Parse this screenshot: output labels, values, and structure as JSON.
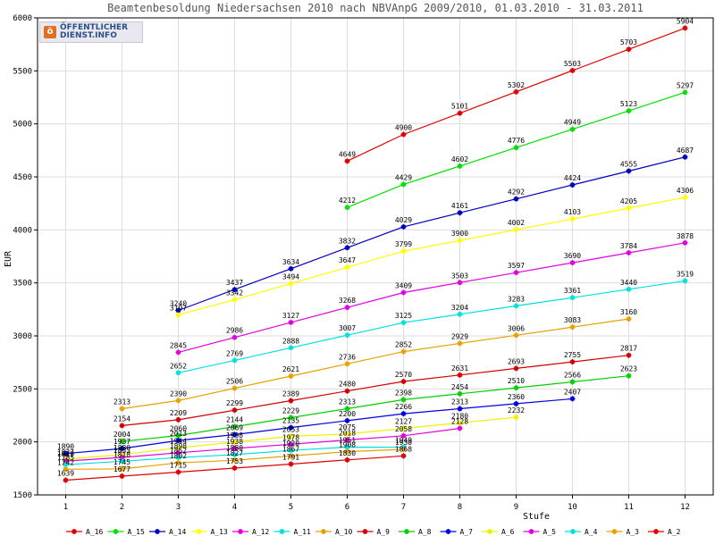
{
  "colors": {
    "frame": "#000000",
    "grid": "#dddddd",
    "title_text": "#555555"
  },
  "logo": {
    "line1": "ÖFFENTLICHER",
    "line2": "DIENST.INFO",
    "icon": "logo-badge-icon"
  },
  "chart_data": {
    "type": "line",
    "title": "Beamtenbesoldung Niedersachsen 2010 nach NBVAnpG 2009/2010, 01.03.2010 - 31.03.2011",
    "xlabel": "Stufe",
    "ylabel": "EUR",
    "xlim": [
      0.5,
      12.5
    ],
    "ylim": [
      1500,
      6000
    ],
    "x_ticks": [
      1,
      2,
      3,
      4,
      5,
      6,
      7,
      8,
      9,
      10,
      11,
      12
    ],
    "y_ticks": [
      1500,
      2000,
      2500,
      3000,
      3500,
      4000,
      4500,
      5000,
      5500,
      6000
    ],
    "grid": true,
    "legend_position": "bottom",
    "series": [
      {
        "name": "A_16",
        "color": "#e00000",
        "x": [
          6,
          7,
          8,
          9,
          10,
          11,
          12
        ],
        "values": [
          4649,
          4900,
          5101,
          5302,
          5503,
          5703,
          5904
        ]
      },
      {
        "name": "A_15",
        "color": "#00e000",
        "x": [
          6,
          7,
          8,
          9,
          10,
          11,
          12
        ],
        "values": [
          4212,
          4429,
          4602,
          4776,
          4949,
          5123,
          5297
        ]
      },
      {
        "name": "A_14",
        "color": "#0000c0",
        "x": [
          3,
          4,
          5,
          6,
          7,
          8,
          9,
          10,
          11,
          12
        ],
        "values": [
          3240,
          3437,
          3634,
          3832,
          4029,
          4161,
          4292,
          4424,
          4555,
          4687
        ]
      },
      {
        "name": "A_13",
        "color": "#ffff00",
        "x": [
          3,
          4,
          5,
          6,
          7,
          8,
          9,
          10,
          11,
          12
        ],
        "values": [
          3197,
          3342,
          3494,
          3647,
          3799,
          3900,
          4002,
          4103,
          4205,
          4306
        ]
      },
      {
        "name": "A_12",
        "color": "#e000e0",
        "x": [
          3,
          4,
          5,
          6,
          7,
          8,
          9,
          10,
          11,
          12
        ],
        "values": [
          2845,
          2986,
          3127,
          3268,
          3409,
          3503,
          3597,
          3690,
          3784,
          3878
        ]
      },
      {
        "name": "A_11",
        "color": "#00e0e0",
        "x": [
          3,
          4,
          5,
          6,
          7,
          8,
          9,
          10,
          11,
          12
        ],
        "values": [
          2652,
          2769,
          2888,
          3007,
          3125,
          3204,
          3283,
          3361,
          3440,
          3519
        ]
      },
      {
        "name": "A_10",
        "color": "#e8a000",
        "x": [
          2,
          3,
          4,
          5,
          6,
          7,
          8,
          9,
          10,
          11
        ],
        "values": [
          2313,
          2390,
          2506,
          2621,
          2736,
          2852,
          2929,
          3006,
          3083,
          3160
        ]
      },
      {
        "name": "A_9",
        "color": "#d00000",
        "x": [
          2,
          3,
          4,
          5,
          6,
          7,
          8,
          9,
          10,
          11
        ],
        "values": [
          2154,
          2209,
          2299,
          2389,
          2480,
          2570,
          2631,
          2693,
          2755,
          2817
        ]
      },
      {
        "name": "A_8",
        "color": "#00d000",
        "x": [
          2,
          3,
          4,
          5,
          6,
          7,
          8,
          9,
          10,
          11
        ],
        "values": [
          2004,
          2060,
          2144,
          2229,
          2313,
          2398,
          2454,
          2510,
          2566,
          2623
        ]
      },
      {
        "name": "A_7",
        "color": "#0000e0",
        "x": [
          1,
          2,
          3,
          4,
          5,
          6,
          7,
          8,
          9,
          10
        ],
        "values": [
          1890,
          1937,
          2013,
          2069,
          2135,
          2200,
          2266,
          2313,
          2360,
          2407
        ]
      },
      {
        "name": "A_6",
        "color": "#f0f000",
        "x": [
          1,
          2,
          3,
          4,
          5,
          6,
          7,
          8,
          9
        ],
        "values": [
          1837,
          1880,
          1944,
          1998,
          2053,
          2075,
          2127,
          2180,
          2232
        ]
      },
      {
        "name": "A_5",
        "color": "#e000e0",
        "x": [
          1,
          2,
          3,
          4,
          5,
          6,
          7,
          8
        ],
        "values": [
          1819,
          1853,
          1898,
          1938,
          1978,
          2018,
          2058,
          2128
        ]
      },
      {
        "name": "A_4",
        "color": "#00e0e0",
        "x": [
          1,
          2,
          3,
          4,
          5,
          6,
          7
        ],
        "values": [
          1785,
          1818,
          1852,
          1880,
          1920,
          1951,
          1949
        ]
      },
      {
        "name": "A_3",
        "color": "#e8a000",
        "x": [
          1,
          2,
          3,
          4,
          5,
          6,
          7
        ],
        "values": [
          1742,
          1745,
          1802,
          1827,
          1867,
          1908,
          1930
        ]
      },
      {
        "name": "A_2",
        "color": "#e00000",
        "x": [
          1,
          2,
          3,
          4,
          5,
          6,
          7
        ],
        "values": [
          1639,
          1677,
          1715,
          1753,
          1791,
          1830,
          1868
        ]
      }
    ]
  }
}
